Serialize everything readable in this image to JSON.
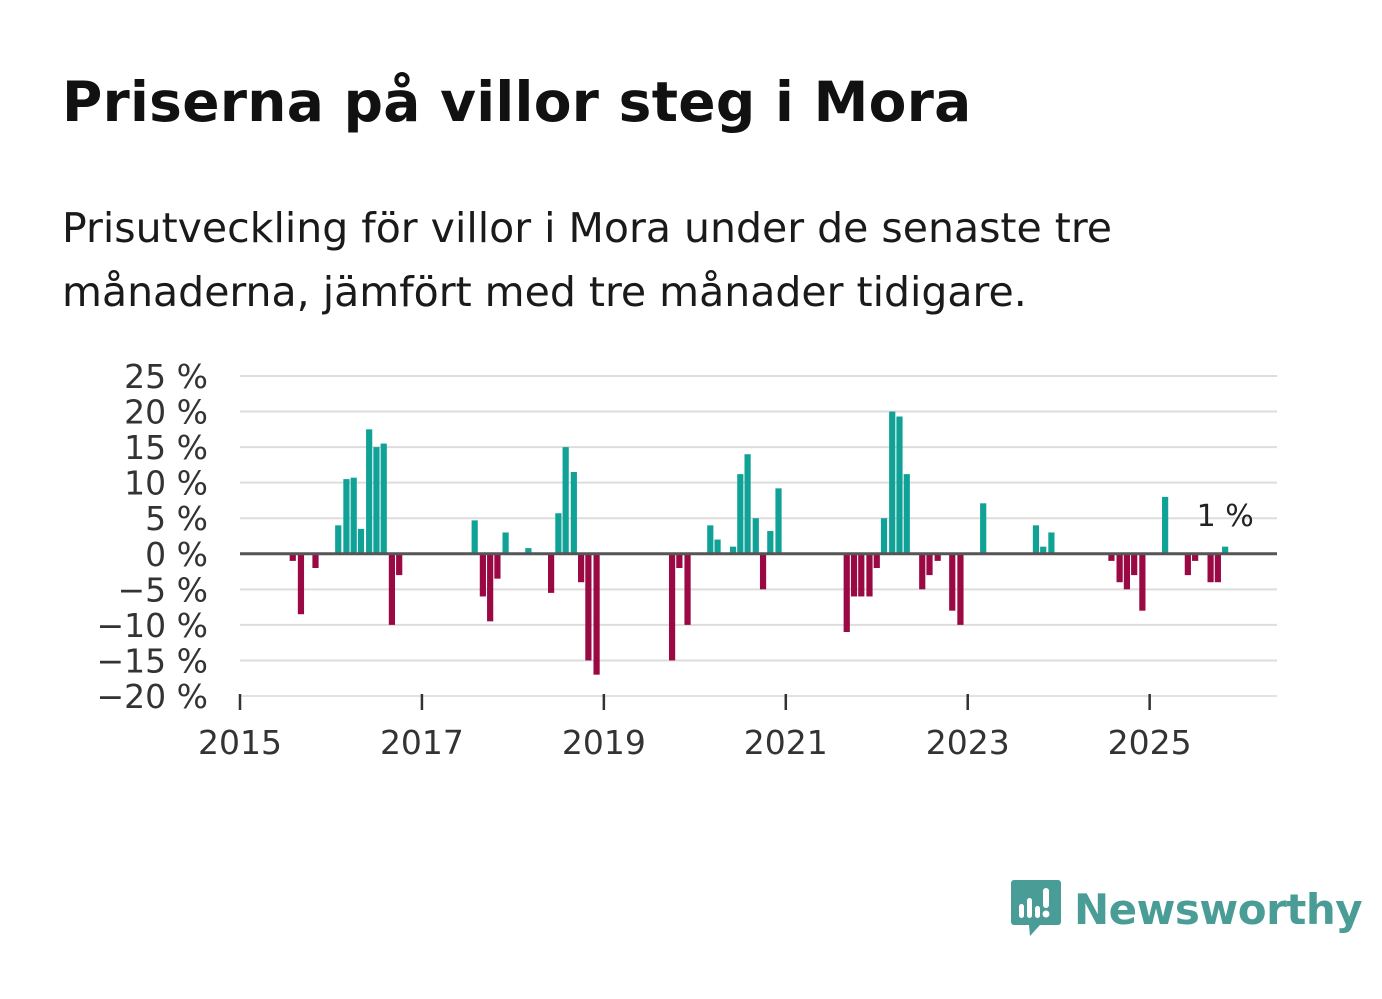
{
  "title": "Priserna på villor steg i Mora",
  "subtitle": "Prisutveckling för villor i Mora under de senaste tre månaderna, jämfört med tre månader tidigare.",
  "brand": {
    "name": "Newsworthy",
    "color": "#4a9c96",
    "icon": "newsworthy-logo-icon"
  },
  "colors": {
    "positive": "#11a297",
    "negative": "#9a0943",
    "zero_line": "#555555",
    "grid": "#dddddd"
  },
  "chart_data": {
    "type": "bar",
    "title": "Priserna på villor steg i Mora",
    "xlabel": "",
    "ylabel": "",
    "ylim": [
      -20,
      25
    ],
    "xlim": [
      2015,
      2026.4
    ],
    "grid": true,
    "y_ticks": [
      {
        "value": 25,
        "label": "25 %"
      },
      {
        "value": 20,
        "label": "20 %"
      },
      {
        "value": 15,
        "label": "15 %"
      },
      {
        "value": 10,
        "label": "10 %"
      },
      {
        "value": 5,
        "label": "5 %"
      },
      {
        "value": 0,
        "label": "0 %"
      },
      {
        "value": -5,
        "label": "−5 %"
      },
      {
        "value": -10,
        "label": "−10 %"
      },
      {
        "value": -15,
        "label": "−15 %"
      },
      {
        "value": -20,
        "label": "−20 %"
      }
    ],
    "x_ticks": [
      {
        "value": 2015,
        "label": "2015"
      },
      {
        "value": 2017,
        "label": "2017"
      },
      {
        "value": 2019,
        "label": "2019"
      },
      {
        "value": 2021,
        "label": "2021"
      },
      {
        "value": 2023,
        "label": "2023"
      },
      {
        "value": 2025,
        "label": "2025"
      }
    ],
    "series": [
      {
        "name": "Prisutveckling",
        "points": [
          {
            "x": 2015.58,
            "y": -1
          },
          {
            "x": 2015.67,
            "y": -8.5
          },
          {
            "x": 2015.83,
            "y": -2
          },
          {
            "x": 2016.08,
            "y": 4
          },
          {
            "x": 2016.17,
            "y": 10.5
          },
          {
            "x": 2016.25,
            "y": 10.7
          },
          {
            "x": 2016.33,
            "y": 3.5
          },
          {
            "x": 2016.42,
            "y": 17.5
          },
          {
            "x": 2016.5,
            "y": 15
          },
          {
            "x": 2016.58,
            "y": 15.5
          },
          {
            "x": 2016.67,
            "y": -10
          },
          {
            "x": 2016.75,
            "y": -3
          },
          {
            "x": 2017.58,
            "y": 4.7
          },
          {
            "x": 2017.67,
            "y": -6
          },
          {
            "x": 2017.75,
            "y": -9.5
          },
          {
            "x": 2017.83,
            "y": -3.5
          },
          {
            "x": 2017.92,
            "y": 3
          },
          {
            "x": 2018.17,
            "y": 0.8
          },
          {
            "x": 2018.42,
            "y": -5.5
          },
          {
            "x": 2018.5,
            "y": 5.7
          },
          {
            "x": 2018.58,
            "y": 15
          },
          {
            "x": 2018.67,
            "y": 11.5
          },
          {
            "x": 2018.75,
            "y": -4
          },
          {
            "x": 2018.83,
            "y": -15
          },
          {
            "x": 2018.92,
            "y": -17
          },
          {
            "x": 2019.75,
            "y": -15
          },
          {
            "x": 2019.83,
            "y": -2
          },
          {
            "x": 2019.92,
            "y": -10
          },
          {
            "x": 2020.17,
            "y": 4
          },
          {
            "x": 2020.25,
            "y": 2
          },
          {
            "x": 2020.42,
            "y": 1
          },
          {
            "x": 2020.5,
            "y": 11.2
          },
          {
            "x": 2020.58,
            "y": 14
          },
          {
            "x": 2020.67,
            "y": 5
          },
          {
            "x": 2020.75,
            "y": -5
          },
          {
            "x": 2020.83,
            "y": 3.2
          },
          {
            "x": 2020.92,
            "y": 9.2
          },
          {
            "x": 2021.67,
            "y": -11
          },
          {
            "x": 2021.75,
            "y": -6
          },
          {
            "x": 2021.83,
            "y": -6
          },
          {
            "x": 2021.92,
            "y": -6
          },
          {
            "x": 2022.0,
            "y": -2
          },
          {
            "x": 2022.08,
            "y": 5
          },
          {
            "x": 2022.17,
            "y": 20
          },
          {
            "x": 2022.25,
            "y": 19.3
          },
          {
            "x": 2022.33,
            "y": 11.2
          },
          {
            "x": 2022.5,
            "y": -5
          },
          {
            "x": 2022.58,
            "y": -3
          },
          {
            "x": 2022.67,
            "y": -1
          },
          {
            "x": 2022.83,
            "y": -8
          },
          {
            "x": 2022.92,
            "y": -10
          },
          {
            "x": 2023.17,
            "y": 7.1
          },
          {
            "x": 2023.75,
            "y": 4
          },
          {
            "x": 2023.83,
            "y": 1
          },
          {
            "x": 2023.92,
            "y": 3
          },
          {
            "x": 2024.58,
            "y": -1
          },
          {
            "x": 2024.67,
            "y": -4
          },
          {
            "x": 2024.75,
            "y": -5
          },
          {
            "x": 2024.83,
            "y": -3
          },
          {
            "x": 2024.92,
            "y": -8
          },
          {
            "x": 2025.17,
            "y": 8
          },
          {
            "x": 2025.42,
            "y": -3
          },
          {
            "x": 2025.5,
            "y": -1
          },
          {
            "x": 2025.67,
            "y": -4
          },
          {
            "x": 2025.75,
            "y": -4
          },
          {
            "x": 2025.83,
            "y": 1
          }
        ]
      }
    ],
    "annotation": {
      "x": 2025.83,
      "y": 1,
      "label": "1 %"
    }
  }
}
